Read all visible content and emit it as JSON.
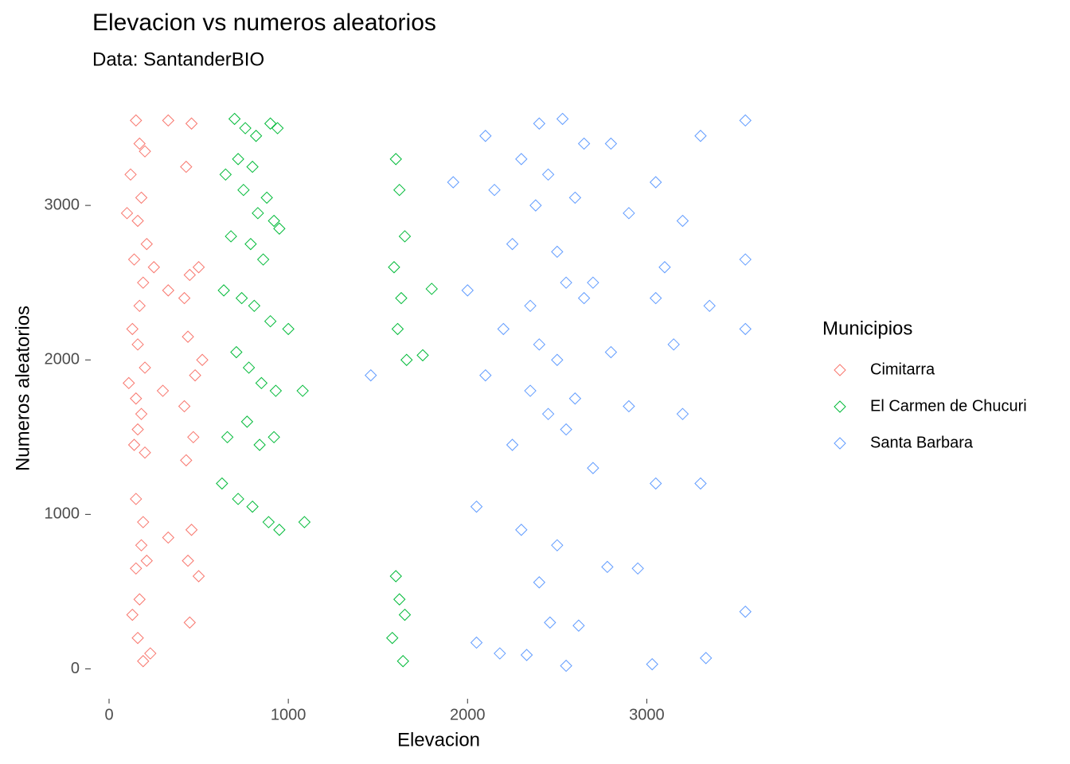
{
  "chart_data": {
    "type": "scatter",
    "title": "Elevacion vs numeros aleatorios",
    "subtitle": "Data: SantanderBIO",
    "x_label": "Elevacion",
    "y_label": "Numeros aleatorios",
    "legend_title": "Municipios",
    "legend": "right",
    "marker": "open-diamond",
    "grid": false,
    "xlim": [
      -80,
      3660
    ],
    "xticks": [
      0,
      1000,
      2000,
      3000
    ],
    "ylim": [
      -80,
      3660
    ],
    "yticks": [
      0,
      1000,
      2000,
      3000
    ],
    "series": [
      {
        "name": "Cimitarra",
        "color": "#F8766D",
        "x": [
          150,
          170,
          200,
          120,
          180,
          330,
          430,
          460,
          160,
          210,
          100,
          140,
          190,
          250,
          420,
          450,
          500,
          170,
          130,
          160,
          330,
          440,
          480,
          200,
          110,
          150,
          180,
          300,
          420,
          520,
          160,
          140,
          200,
          430,
          470,
          150,
          190,
          330,
          460,
          180,
          150,
          210,
          440,
          500,
          170,
          130,
          160,
          230,
          450,
          190
        ],
        "values": [
          3550,
          3400,
          3350,
          3200,
          3050,
          3550,
          3250,
          3530,
          2900,
          2750,
          2950,
          2650,
          2500,
          2600,
          2400,
          2550,
          2600,
          2350,
          2200,
          2100,
          2450,
          2150,
          1900,
          1950,
          1850,
          1750,
          1650,
          1800,
          1700,
          2000,
          1550,
          1450,
          1400,
          1350,
          1500,
          1100,
          950,
          850,
          900,
          800,
          650,
          700,
          700,
          600,
          450,
          350,
          200,
          100,
          300,
          50
        ]
      },
      {
        "name": "El Carmen de Chucuri",
        "color": "#00BA38",
        "x": [
          700,
          760,
          820,
          900,
          940,
          650,
          720,
          800,
          880,
          750,
          830,
          920,
          680,
          790,
          860,
          950,
          640,
          740,
          810,
          900,
          1000,
          710,
          780,
          850,
          930,
          1080,
          660,
          770,
          840,
          920,
          630,
          720,
          800,
          890,
          950,
          1090,
          1600,
          1620,
          1650,
          1580,
          1640,
          1750,
          1800,
          1600,
          1620,
          1650,
          1590,
          1630,
          1610,
          1660
        ],
        "values": [
          3560,
          3500,
          3450,
          3530,
          3500,
          3200,
          3300,
          3250,
          3050,
          3100,
          2950,
          2900,
          2800,
          2750,
          2650,
          2850,
          2450,
          2400,
          2350,
          2250,
          2200,
          2050,
          1950,
          1850,
          1800,
          1800,
          1500,
          1600,
          1450,
          1500,
          1200,
          1100,
          1050,
          950,
          900,
          950,
          600,
          450,
          350,
          200,
          50,
          2030,
          2460,
          3300,
          3100,
          2800,
          2600,
          2400,
          2200,
          2000
        ]
      },
      {
        "name": "Santa Barbara",
        "color": "#619CFF",
        "x": [
          2400,
          2530,
          2650,
          3550,
          2100,
          2300,
          2450,
          2800,
          3050,
          3300,
          1920,
          2150,
          2380,
          2600,
          2900,
          3200,
          2250,
          2500,
          2700,
          3100,
          3550,
          2000,
          2350,
          2550,
          2650,
          3050,
          3350,
          1460,
          2200,
          2400,
          2500,
          2800,
          3150,
          3550,
          2100,
          2350,
          2450,
          2600,
          2900,
          3200,
          2250,
          2550,
          2700,
          3050,
          3300,
          2050,
          2300,
          2500,
          2950,
          3550,
          2050,
          2180,
          2330,
          2460,
          2550,
          2620,
          2780,
          3030,
          3330,
          2400
        ],
        "values": [
          3530,
          3560,
          3400,
          3550,
          3450,
          3300,
          3200,
          3400,
          3150,
          3450,
          3150,
          3100,
          3000,
          3050,
          2950,
          2900,
          2750,
          2700,
          2500,
          2600,
          2650,
          2450,
          2350,
          2500,
          2400,
          2400,
          2350,
          1900,
          2200,
          2100,
          2000,
          2050,
          2100,
          2200,
          1900,
          1800,
          1650,
          1750,
          1700,
          1650,
          1450,
          1550,
          1300,
          1200,
          1200,
          1050,
          900,
          800,
          650,
          370,
          170,
          100,
          90,
          300,
          20,
          280,
          660,
          30,
          70,
          560
        ]
      }
    ]
  }
}
